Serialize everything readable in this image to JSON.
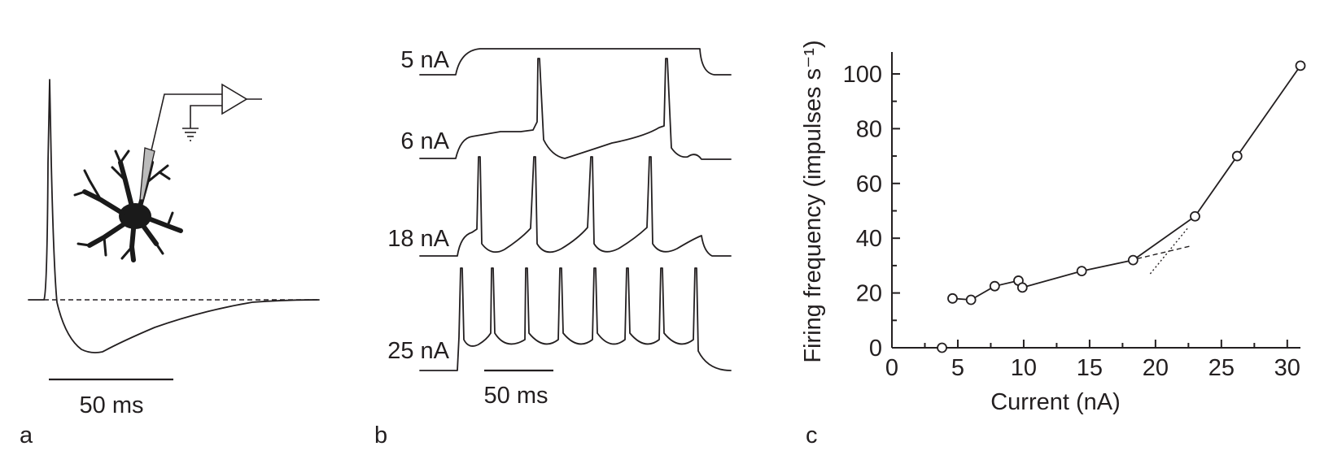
{
  "panels": {
    "a": {
      "letter": "a",
      "scale_bar": "50 ms"
    },
    "b": {
      "letter": "b",
      "scale_bar": "50 ms",
      "traces": [
        {
          "label": "5 nA"
        },
        {
          "label": "6 nA"
        },
        {
          "label": "18 nA"
        },
        {
          "label": "25 nA"
        }
      ]
    },
    "c": {
      "letter": "c"
    }
  },
  "chart_data": {
    "type": "scatter",
    "title": "",
    "xlabel": "Current (nA)",
    "ylabel": "Firing frequency (impulses s⁻¹)",
    "xlim": [
      0,
      31
    ],
    "ylim": [
      0,
      108
    ],
    "xticks": [
      0,
      5,
      10,
      15,
      20,
      25,
      30
    ],
    "yticks": [
      0,
      20,
      40,
      60,
      80,
      100
    ],
    "grid": false,
    "points": [
      {
        "x": 3.8,
        "y": 0
      },
      {
        "x": 4.6,
        "y": 18
      },
      {
        "x": 6.0,
        "y": 17.5
      },
      {
        "x": 7.8,
        "y": 22.5
      },
      {
        "x": 9.6,
        "y": 24.5
      },
      {
        "x": 9.9,
        "y": 22
      },
      {
        "x": 14.4,
        "y": 28
      },
      {
        "x": 18.3,
        "y": 32
      },
      {
        "x": 23.0,
        "y": 48
      },
      {
        "x": 26.2,
        "y": 70
      },
      {
        "x": 31.0,
        "y": 103
      }
    ],
    "fit_lines": [
      {
        "style": "dashed",
        "points": [
          [
            18.6,
            32.5
          ],
          [
            22.8,
            37.3
          ]
        ]
      },
      {
        "style": "dotted",
        "points": [
          [
            19.6,
            27
          ],
          [
            22.5,
            44
          ]
        ]
      }
    ]
  }
}
